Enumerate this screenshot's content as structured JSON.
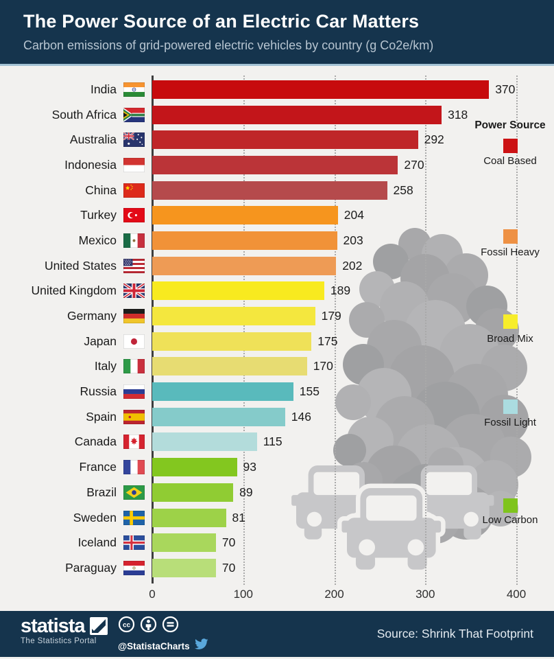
{
  "header": {
    "title": "The Power Source of an Electric Car Matters",
    "subtitle": "Carbon emissions of grid-powered electric vehicles by country (g Co2e/km)"
  },
  "chart_data": {
    "type": "bar",
    "orientation": "horizontal",
    "title": "The Power Source of an Electric Car Matters",
    "subtitle": "Carbon emissions of grid-powered electric vehicles by country (g Co2e/km)",
    "unit": "g Co2e/km",
    "xlim": [
      0,
      400
    ],
    "x_ticks": [
      "0",
      "100",
      "200",
      "300",
      "400"
    ],
    "grid": "vertical-dotted",
    "categories": [
      "India",
      "South Africa",
      "Australia",
      "Indonesia",
      "China",
      "Turkey",
      "Mexico",
      "United States",
      "United Kingdom",
      "Germany",
      "Japan",
      "Italy",
      "Russia",
      "Spain",
      "Canada",
      "France",
      "Brazil",
      "Sweden",
      "Iceland",
      "Paraguay"
    ],
    "values": [
      370,
      318,
      292,
      270,
      258,
      204,
      203,
      202,
      189,
      179,
      175,
      170,
      155,
      146,
      115,
      93,
      89,
      81,
      70,
      70
    ],
    "rows": [
      {
        "country": "India",
        "value": 370,
        "group": "Coal Based",
        "color": "#c70b0d",
        "flag": "india"
      },
      {
        "country": "South Africa",
        "value": 318,
        "group": "Coal Based",
        "color": "#c3151a",
        "flag": "south-africa"
      },
      {
        "country": "Australia",
        "value": 292,
        "group": "Coal Based",
        "color": "#bf2629",
        "flag": "australia"
      },
      {
        "country": "Indonesia",
        "value": 270,
        "group": "Coal Based",
        "color": "#bb3438",
        "flag": "indonesia"
      },
      {
        "country": "China",
        "value": 258,
        "group": "Coal Based",
        "color": "#b54a4c",
        "flag": "china"
      },
      {
        "country": "Turkey",
        "value": 204,
        "group": "Fossil Heavy",
        "color": "#f6951e",
        "flag": "turkey"
      },
      {
        "country": "Mexico",
        "value": 203,
        "group": "Fossil Heavy",
        "color": "#f19238",
        "flag": "mexico"
      },
      {
        "country": "United States",
        "value": 202,
        "group": "Fossil Heavy",
        "color": "#ee9b55",
        "flag": "usa"
      },
      {
        "country": "United Kingdom",
        "value": 189,
        "group": "Broad Mix",
        "color": "#f8ea1f",
        "flag": "uk"
      },
      {
        "country": "Germany",
        "value": 179,
        "group": "Broad Mix",
        "color": "#f4e73e",
        "flag": "germany"
      },
      {
        "country": "Japan",
        "value": 175,
        "group": "Broad Mix",
        "color": "#efe158",
        "flag": "japan"
      },
      {
        "country": "Italy",
        "value": 170,
        "group": "Broad Mix",
        "color": "#e7dc72",
        "flag": "italy"
      },
      {
        "country": "Russia",
        "value": 155,
        "group": "Fossil Light",
        "color": "#59babc",
        "flag": "russia"
      },
      {
        "country": "Spain",
        "value": 146,
        "group": "Fossil Light",
        "color": "#85cbca",
        "flag": "spain"
      },
      {
        "country": "Canada",
        "value": 115,
        "group": "Fossil Light",
        "color": "#b3dcdb",
        "flag": "canada"
      },
      {
        "country": "France",
        "value": 93,
        "group": "Low Carbon",
        "color": "#83c71f",
        "flag": "france"
      },
      {
        "country": "Brazil",
        "value": 89,
        "group": "Low Carbon",
        "color": "#90cc33",
        "flag": "brazil"
      },
      {
        "country": "Sweden",
        "value": 81,
        "group": "Low Carbon",
        "color": "#9dd248",
        "flag": "sweden"
      },
      {
        "country": "Iceland",
        "value": 70,
        "group": "Low Carbon",
        "color": "#a9d75c",
        "flag": "iceland"
      },
      {
        "country": "Paraguay",
        "value": 70,
        "group": "Low Carbon",
        "color": "#b8de79",
        "flag": "paraguay"
      }
    ],
    "legend": {
      "title": "Power Source",
      "position": "right",
      "items": [
        {
          "label": "Coal Based",
          "color": "#cc1214"
        },
        {
          "label": "Fossil Heavy",
          "color": "#ee9144"
        },
        {
          "label": "Broad Mix",
          "color": "#f7ed2b"
        },
        {
          "label": "Fossil Light",
          "color": "#abdce0"
        },
        {
          "label": "Low Carbon",
          "color": "#7fc41d"
        }
      ]
    }
  },
  "colors": {
    "header_background": "#15344d",
    "chart_background": "#f2f1ef",
    "footer_background": "#15344d",
    "smoke_gray": "#a8a8aa",
    "car_gray": "#c7c7c9"
  },
  "footer": {
    "logo_text": "statista",
    "logo_tagline": "The Statistics Portal",
    "handle": "@StatistaCharts",
    "cc_icons": [
      "cc",
      "attribution",
      "no-derivatives"
    ],
    "source": "Source: Shrink That Footprint"
  }
}
